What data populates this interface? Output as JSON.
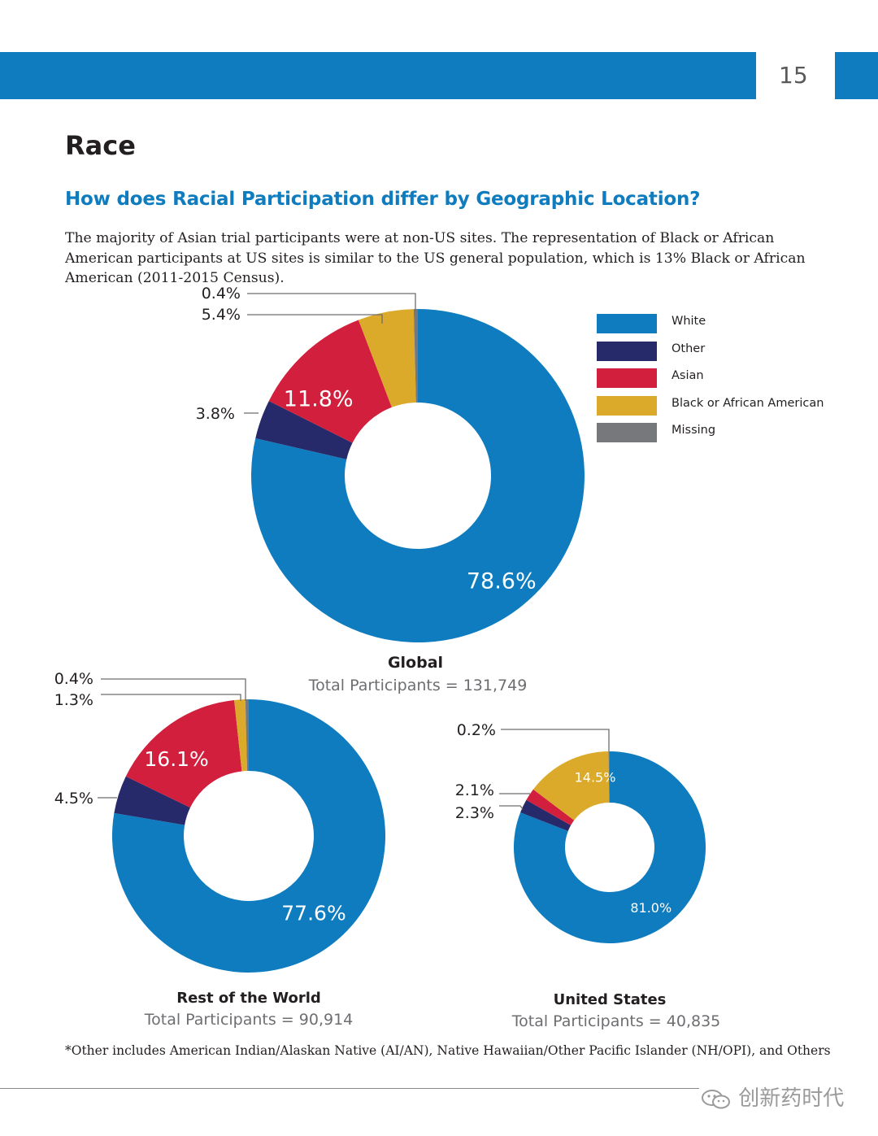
{
  "header": {
    "page_number": "15"
  },
  "section_title": "Race",
  "subtitle": "How does Racial Participation differ by Geographic Location?",
  "intro_text": "The majority of Asian trial participants were at non-US sites. The representation of Black or African American participants at US sites is similar to the US general population, which is 13% Black or African American (2011-2015 Census).",
  "legend": [
    {
      "label": "White",
      "color": "#0e7cbe"
    },
    {
      "label": "Other",
      "color": "#262a6a"
    },
    {
      "label": "Asian",
      "color": "#d21f3d"
    },
    {
      "label": "Black or African American",
      "color": "#dcaa2a"
    },
    {
      "label": "Missing",
      "color": "#76787b"
    }
  ],
  "chart_data": [
    {
      "type": "pie",
      "variant": "donut",
      "title": "Global",
      "subtitle": "Total Participants = 131,749",
      "categories": [
        "White",
        "Other",
        "Asian",
        "Black or African American",
        "Missing"
      ],
      "values": [
        78.6,
        3.8,
        11.8,
        5.4,
        0.4
      ],
      "labels": [
        "78.6%",
        "3.8%",
        "11.8%",
        "5.4%",
        "0.4%"
      ],
      "colors": [
        "#0e7cbe",
        "#262a6a",
        "#d21f3d",
        "#dcaa2a",
        "#76787b"
      ],
      "legend_position": "right"
    },
    {
      "type": "pie",
      "variant": "donut",
      "title": "Rest of the World",
      "subtitle": "Total Participants = 90,914",
      "categories": [
        "White",
        "Other",
        "Asian",
        "Black or African American",
        "Missing"
      ],
      "values": [
        77.6,
        4.5,
        16.1,
        1.3,
        0.4
      ],
      "labels": [
        "77.6%",
        "4.5%",
        "16.1%",
        "1.3%",
        "0.4%"
      ],
      "colors": [
        "#0e7cbe",
        "#262a6a",
        "#d21f3d",
        "#dcaa2a",
        "#76787b"
      ]
    },
    {
      "type": "pie",
      "variant": "donut",
      "title": "United States",
      "subtitle": "Total Participants = 40,835",
      "categories": [
        "White",
        "Other",
        "Asian",
        "Black or African American",
        "Missing"
      ],
      "values": [
        81.0,
        2.3,
        2.1,
        14.5,
        0.2
      ],
      "labels": [
        "81.0%",
        "2.3%",
        "2.1%",
        "14.5%",
        "0.2%"
      ],
      "colors": [
        "#0e7cbe",
        "#262a6a",
        "#d21f3d",
        "#dcaa2a",
        "#76787b"
      ]
    }
  ],
  "footnote": "*Other includes American Indian/Alaskan Native (AI/AN), Native Hawaiian/Other Pacific Islander (NH/OPI), and Others",
  "watermark": "创新药时代"
}
